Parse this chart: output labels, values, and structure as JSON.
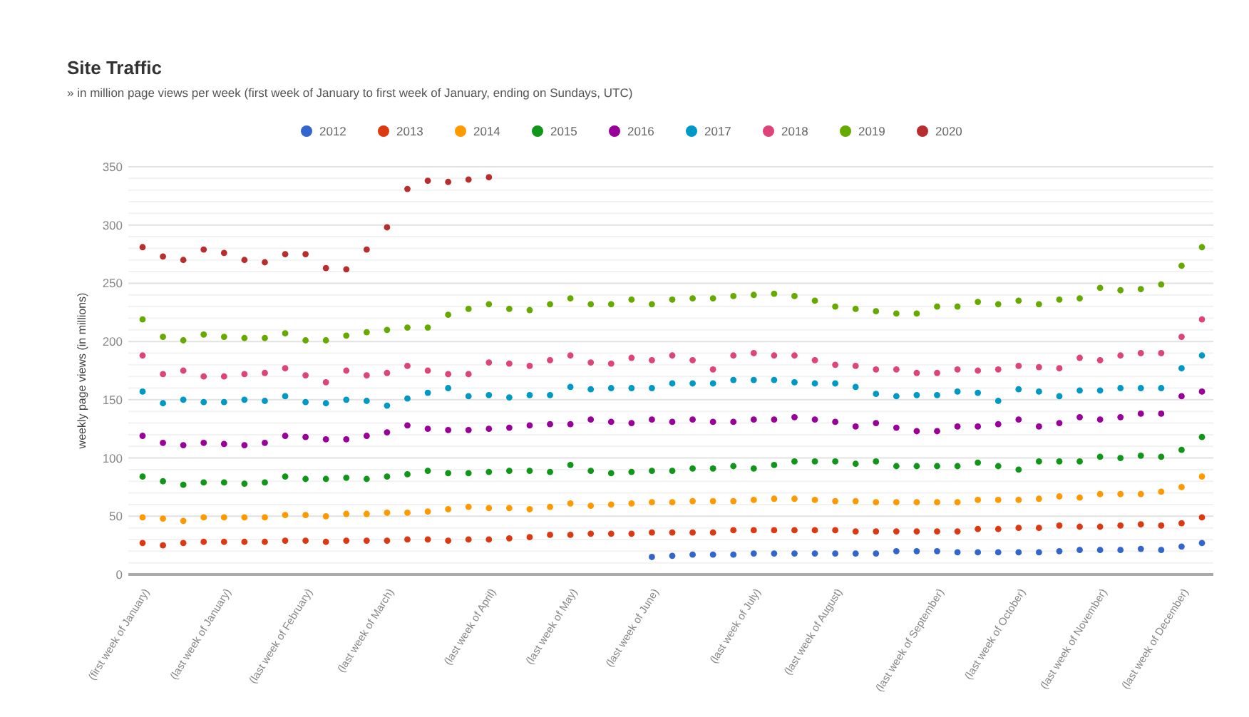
{
  "chart_data": {
    "type": "scatter",
    "title": "Site Traffic",
    "subtitle": "» in million page views per week (first week of January to first week of January, ending on Sundays, UTC)",
    "ylabel": "weekly page views (in millions)",
    "categories": [
      "(first week of January)",
      null,
      null,
      null,
      "(last week of January)",
      null,
      null,
      null,
      "(last week of February)",
      null,
      null,
      null,
      "(last week of March)",
      null,
      null,
      null,
      null,
      "(last week of April)",
      null,
      null,
      null,
      "(last week of May)",
      null,
      null,
      null,
      "(last week of June)",
      null,
      null,
      null,
      null,
      "(last week of July)",
      null,
      null,
      null,
      "(last week of August)",
      null,
      null,
      null,
      null,
      "(last week of September)",
      null,
      null,
      null,
      "(last week of October)",
      null,
      null,
      null,
      "(last week of November)",
      null,
      null,
      null,
      "(last week of December)",
      null
    ],
    "ylim": [
      0,
      350
    ],
    "yticks": [
      0,
      {
        "value": 10,
        "label": null
      },
      {
        "value": 20,
        "label": null
      },
      {
        "value": 30,
        "label": null
      },
      {
        "value": 40,
        "label": null
      },
      50,
      {
        "value": 60,
        "label": null
      },
      {
        "value": 70,
        "label": null
      },
      {
        "value": 80,
        "label": null
      },
      {
        "value": 90,
        "label": null
      },
      100,
      {
        "value": 110,
        "label": null
      },
      {
        "value": 120,
        "label": null
      },
      {
        "value": 130,
        "label": null
      },
      {
        "value": 140,
        "label": null
      },
      150,
      {
        "value": 160,
        "label": null
      },
      {
        "value": 170,
        "label": null
      },
      {
        "value": 180,
        "label": null
      },
      {
        "value": 190,
        "label": null
      },
      200,
      {
        "value": 210,
        "label": null
      },
      {
        "value": 220,
        "label": null
      },
      {
        "value": 230,
        "label": null
      },
      {
        "value": 240,
        "label": null
      },
      250,
      {
        "value": 260,
        "label": null
      },
      {
        "value": 270,
        "label": null
      },
      {
        "value": 280,
        "label": null
      },
      {
        "value": 290,
        "label": null
      },
      300,
      {
        "value": 310,
        "label": null
      },
      {
        "value": 320,
        "label": null
      },
      {
        "value": 330,
        "label": null
      },
      {
        "value": 340,
        "label": null
      },
      350
    ],
    "grid": "y",
    "legend": "top",
    "marker": "circle",
    "series": [
      {
        "name": "2012",
        "color": "#3366cc",
        "values": [
          null,
          null,
          null,
          null,
          null,
          null,
          null,
          null,
          null,
          null,
          null,
          null,
          null,
          null,
          null,
          null,
          null,
          null,
          null,
          null,
          null,
          null,
          null,
          null,
          null,
          15,
          16,
          17,
          17,
          17,
          18,
          18,
          18,
          18,
          18,
          18,
          18,
          20,
          20,
          20,
          19,
          19,
          19,
          19,
          19,
          20,
          21,
          21,
          21,
          22,
          21,
          24,
          27
        ]
      },
      {
        "name": "2013",
        "color": "#dc3912",
        "values": [
          27,
          25,
          27,
          28,
          28,
          28,
          28,
          29,
          29,
          28,
          29,
          29,
          29,
          30,
          30,
          29,
          30,
          30,
          31,
          32,
          34,
          34,
          35,
          35,
          35,
          36,
          36,
          36,
          36,
          38,
          38,
          38,
          38,
          38,
          38,
          37,
          37,
          37,
          37,
          37,
          37,
          39,
          39,
          40,
          40,
          42,
          41,
          41,
          42,
          43,
          42,
          44,
          49
        ]
      },
      {
        "name": "2014",
        "color": "#ff9900",
        "values": [
          49,
          48,
          46,
          49,
          49,
          49,
          49,
          51,
          51,
          50,
          52,
          52,
          53,
          53,
          54,
          56,
          58,
          57,
          57,
          56,
          58,
          61,
          59,
          60,
          61,
          62,
          62,
          63,
          63,
          63,
          64,
          65,
          65,
          64,
          63,
          63,
          62,
          62,
          62,
          62,
          62,
          64,
          64,
          64,
          65,
          67,
          66,
          69,
          69,
          69,
          71,
          75,
          84
        ]
      },
      {
        "name": "2015",
        "color": "#109618",
        "values": [
          84,
          80,
          77,
          79,
          79,
          78,
          79,
          84,
          82,
          82,
          83,
          82,
          84,
          86,
          89,
          87,
          87,
          88,
          89,
          89,
          88,
          94,
          89,
          87,
          88,
          89,
          89,
          91,
          91,
          93,
          91,
          94,
          97,
          97,
          97,
          95,
          97,
          93,
          93,
          93,
          93,
          96,
          93,
          90,
          97,
          97,
          97,
          101,
          100,
          102,
          101,
          107,
          118
        ]
      },
      {
        "name": "2016",
        "color": "#990099",
        "values": [
          119,
          113,
          111,
          113,
          112,
          111,
          113,
          119,
          118,
          116,
          116,
          119,
          122,
          128,
          125,
          124,
          124,
          125,
          126,
          128,
          129,
          129,
          133,
          131,
          130,
          133,
          131,
          133,
          131,
          131,
          133,
          133,
          135,
          133,
          131,
          127,
          130,
          126,
          123,
          123,
          127,
          127,
          129,
          133,
          127,
          130,
          135,
          133,
          135,
          138,
          138,
          153,
          157
        ]
      },
      {
        "name": "2017",
        "color": "#0099c6",
        "values": [
          157,
          147,
          150,
          148,
          148,
          150,
          149,
          153,
          148,
          147,
          150,
          149,
          145,
          151,
          156,
          160,
          153,
          154,
          152,
          154,
          154,
          161,
          159,
          160,
          160,
          160,
          164,
          164,
          164,
          167,
          167,
          167,
          165,
          164,
          164,
          161,
          155,
          153,
          154,
          154,
          157,
          156,
          149,
          159,
          157,
          153,
          158,
          158,
          160,
          160,
          160,
          177,
          188
        ]
      },
      {
        "name": "2018",
        "color": "#dd4477",
        "values": [
          188,
          172,
          175,
          170,
          170,
          172,
          173,
          177,
          171,
          165,
          175,
          171,
          173,
          179,
          175,
          172,
          172,
          182,
          181,
          179,
          184,
          188,
          182,
          181,
          186,
          184,
          188,
          184,
          176,
          188,
          190,
          188,
          188,
          184,
          180,
          179,
          176,
          176,
          173,
          173,
          176,
          175,
          176,
          179,
          178,
          177,
          186,
          184,
          188,
          190,
          190,
          204,
          219
        ]
      },
      {
        "name": "2019",
        "color": "#66aa00",
        "values": [
          219,
          204,
          201,
          206,
          204,
          203,
          203,
          207,
          201,
          201,
          205,
          208,
          210,
          212,
          212,
          223,
          228,
          232,
          228,
          227,
          232,
          237,
          232,
          232,
          236,
          232,
          236,
          237,
          237,
          239,
          240,
          241,
          239,
          235,
          230,
          228,
          226,
          224,
          224,
          230,
          230,
          234,
          232,
          235,
          232,
          236,
          237,
          246,
          244,
          245,
          249,
          265,
          281
        ]
      },
      {
        "name": "2020",
        "color": "#b82e2e",
        "values": [
          281,
          273,
          270,
          279,
          276,
          270,
          268,
          275,
          275,
          263,
          262,
          279,
          298,
          331,
          338,
          337,
          339,
          341,
          null,
          null,
          null,
          null,
          null,
          null,
          null,
          null,
          null,
          null,
          null,
          null,
          null,
          null,
          null,
          null,
          null,
          null,
          null,
          null,
          null,
          null,
          null,
          null,
          null,
          null,
          null,
          null,
          null,
          null,
          null,
          null,
          null,
          null,
          null
        ]
      }
    ]
  }
}
